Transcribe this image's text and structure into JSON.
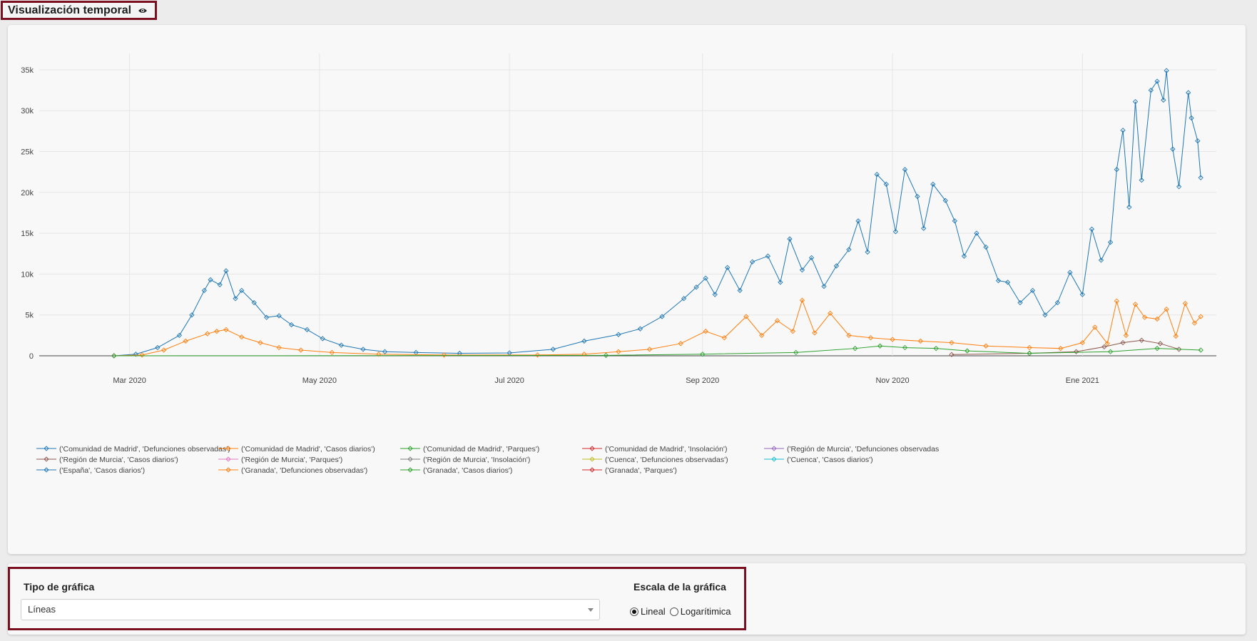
{
  "header": {
    "title": "Visualización temporal",
    "title_icon": "eye-icon"
  },
  "controls": {
    "chart_type_label": "Tipo de gráfica",
    "chart_type_value": "Líneas",
    "scale_label": "Escala de la gráfica",
    "scale_options": [
      {
        "label": "Lineal",
        "checked": true
      },
      {
        "label": "Logarítimica",
        "checked": false
      }
    ]
  },
  "colors": {
    "frame_border": "#7a1020",
    "panel_bg": "#f8f8f8"
  },
  "chart_data": {
    "type": "line",
    "title": "",
    "xlabel": "",
    "ylabel": "",
    "x_tick_labels": [
      "Mar 2020",
      "May 2020",
      "Jul 2020",
      "Sep 2020",
      "Nov 2020",
      "Ene 2021"
    ],
    "x_tick_dates": [
      "2020-03-01",
      "2020-05-01",
      "2020-07-01",
      "2020-09-01",
      "2020-11-01",
      "2021-01-01"
    ],
    "x_range": [
      "2020-02-01",
      "2021-02-13"
    ],
    "y_tick_labels": [
      "0",
      "5k",
      "10k",
      "15k",
      "20k",
      "25k",
      "30k",
      "35k"
    ],
    "y_tick_values": [
      0,
      5000,
      10000,
      15000,
      20000,
      25000,
      30000,
      35000
    ],
    "ylim": [
      0,
      37000
    ],
    "grid": true,
    "legend_position": "bottom",
    "marker": "diamond-open",
    "series": [
      {
        "name": "('Comunidad de Madrid', 'Defunciones observadas')",
        "color": "#1f77b4",
        "points": []
      },
      {
        "name": "('Comunidad de Madrid', 'Casos diarios')",
        "color": "#ff7f0e",
        "points": []
      },
      {
        "name": "('Comunidad de Madrid', 'Parques')",
        "color": "#2ca02c",
        "points": []
      },
      {
        "name": "('Comunidad de Madrid', 'Insolación')",
        "color": "#d62728",
        "points": []
      },
      {
        "name": "('Región de Murcia', 'Defunciones observadas",
        "color": "#9467bd",
        "points": []
      },
      {
        "name": "('Región de Murcia', 'Casos diarios')",
        "color": "#8c564b",
        "points": [
          [
            "2020-11-20",
            150
          ],
          [
            "2020-12-15",
            300
          ],
          [
            "2020-12-30",
            500
          ],
          [
            "2021-01-08",
            1100
          ],
          [
            "2021-01-14",
            1600
          ],
          [
            "2021-01-20",
            1900
          ],
          [
            "2021-01-26",
            1500
          ],
          [
            "2021-02-01",
            800
          ]
        ]
      },
      {
        "name": "('Región de Murcia', 'Parques')",
        "color": "#e377c2",
        "points": []
      },
      {
        "name": "('Región de Murcia', 'Insolación')",
        "color": "#7f7f7f",
        "points": []
      },
      {
        "name": "('Cuenca', 'Defunciones observadas')",
        "color": "#bcbd22",
        "points": []
      },
      {
        "name": "('Cuenca', 'Casos diarios')",
        "color": "#17becf",
        "points": []
      },
      {
        "name": "('España', 'Casos diarios')",
        "color": "#1f77b4",
        "points": [
          [
            "2020-02-25",
            0
          ],
          [
            "2020-03-03",
            200
          ],
          [
            "2020-03-10",
            1000
          ],
          [
            "2020-03-17",
            2500
          ],
          [
            "2020-03-21",
            5000
          ],
          [
            "2020-03-25",
            8000
          ],
          [
            "2020-03-27",
            9300
          ],
          [
            "2020-03-30",
            8700
          ],
          [
            "2020-04-01",
            10400
          ],
          [
            "2020-04-04",
            7000
          ],
          [
            "2020-04-06",
            8000
          ],
          [
            "2020-04-10",
            6500
          ],
          [
            "2020-04-14",
            4700
          ],
          [
            "2020-04-18",
            4900
          ],
          [
            "2020-04-22",
            3800
          ],
          [
            "2020-04-27",
            3200
          ],
          [
            "2020-05-02",
            2100
          ],
          [
            "2020-05-08",
            1300
          ],
          [
            "2020-05-15",
            800
          ],
          [
            "2020-05-22",
            500
          ],
          [
            "2020-06-01",
            400
          ],
          [
            "2020-06-15",
            300
          ],
          [
            "2020-07-01",
            350
          ],
          [
            "2020-07-15",
            800
          ],
          [
            "2020-07-25",
            1800
          ],
          [
            "2020-08-05",
            2600
          ],
          [
            "2020-08-12",
            3300
          ],
          [
            "2020-08-19",
            4800
          ],
          [
            "2020-08-26",
            7000
          ],
          [
            "2020-08-30",
            8400
          ],
          [
            "2020-09-02",
            9500
          ],
          [
            "2020-09-05",
            7500
          ],
          [
            "2020-09-09",
            10800
          ],
          [
            "2020-09-13",
            8000
          ],
          [
            "2020-09-17",
            11500
          ],
          [
            "2020-09-22",
            12200
          ],
          [
            "2020-09-26",
            9000
          ],
          [
            "2020-09-29",
            14300
          ],
          [
            "2020-10-03",
            10500
          ],
          [
            "2020-10-06",
            12000
          ],
          [
            "2020-10-10",
            8500
          ],
          [
            "2020-10-14",
            11000
          ],
          [
            "2020-10-18",
            13000
          ],
          [
            "2020-10-21",
            16500
          ],
          [
            "2020-10-24",
            12700
          ],
          [
            "2020-10-27",
            22200
          ],
          [
            "2020-10-30",
            21000
          ],
          [
            "2020-11-02",
            15200
          ],
          [
            "2020-11-05",
            22800
          ],
          [
            "2020-11-09",
            19500
          ],
          [
            "2020-11-11",
            15600
          ],
          [
            "2020-11-14",
            21000
          ],
          [
            "2020-11-18",
            19000
          ],
          [
            "2020-11-21",
            16500
          ],
          [
            "2020-11-24",
            12200
          ],
          [
            "2020-11-28",
            15000
          ],
          [
            "2020-12-01",
            13300
          ],
          [
            "2020-12-05",
            9200
          ],
          [
            "2020-12-08",
            9000
          ],
          [
            "2020-12-12",
            6500
          ],
          [
            "2020-12-16",
            8000
          ],
          [
            "2020-12-20",
            5000
          ],
          [
            "2020-12-24",
            6500
          ],
          [
            "2020-12-28",
            10200
          ],
          [
            "2021-01-01",
            7500
          ],
          [
            "2021-01-04",
            15500
          ],
          [
            "2021-01-07",
            11700
          ],
          [
            "2021-01-10",
            13900
          ],
          [
            "2021-01-12",
            22800
          ],
          [
            "2021-01-14",
            27600
          ],
          [
            "2021-01-16",
            18200
          ],
          [
            "2021-01-18",
            31100
          ],
          [
            "2021-01-20",
            21500
          ],
          [
            "2021-01-23",
            32500
          ],
          [
            "2021-01-25",
            33600
          ],
          [
            "2021-01-27",
            31300
          ],
          [
            "2021-01-28",
            34900
          ],
          [
            "2021-01-30",
            25300
          ],
          [
            "2021-02-01",
            20700
          ],
          [
            "2021-02-04",
            32200
          ],
          [
            "2021-02-05",
            29100
          ],
          [
            "2021-02-07",
            26300
          ],
          [
            "2021-02-08",
            21800
          ]
        ]
      },
      {
        "name": "('Granada', 'Defunciones observadas')",
        "color": "#ff7f0e",
        "points": [
          [
            "2020-02-25",
            0
          ],
          [
            "2020-03-05",
            100
          ],
          [
            "2020-03-12",
            700
          ],
          [
            "2020-03-19",
            1800
          ],
          [
            "2020-03-26",
            2700
          ],
          [
            "2020-03-29",
            3000
          ],
          [
            "2020-04-01",
            3200
          ],
          [
            "2020-04-06",
            2300
          ],
          [
            "2020-04-12",
            1600
          ],
          [
            "2020-04-18",
            1000
          ],
          [
            "2020-04-25",
            700
          ],
          [
            "2020-05-05",
            400
          ],
          [
            "2020-05-20",
            200
          ],
          [
            "2020-06-10",
            100
          ],
          [
            "2020-07-10",
            100
          ],
          [
            "2020-07-25",
            200
          ],
          [
            "2020-08-05",
            500
          ],
          [
            "2020-08-15",
            800
          ],
          [
            "2020-08-25",
            1500
          ],
          [
            "2020-09-02",
            3000
          ],
          [
            "2020-09-08",
            2200
          ],
          [
            "2020-09-15",
            4800
          ],
          [
            "2020-09-20",
            2500
          ],
          [
            "2020-09-25",
            4300
          ],
          [
            "2020-09-30",
            3000
          ],
          [
            "2020-10-03",
            6800
          ],
          [
            "2020-10-07",
            2800
          ],
          [
            "2020-10-12",
            5200
          ],
          [
            "2020-10-18",
            2500
          ],
          [
            "2020-10-25",
            2200
          ],
          [
            "2020-11-01",
            2000
          ],
          [
            "2020-11-10",
            1800
          ],
          [
            "2020-11-20",
            1600
          ],
          [
            "2020-12-01",
            1200
          ],
          [
            "2020-12-15",
            1000
          ],
          [
            "2020-12-25",
            900
          ],
          [
            "2021-01-01",
            1600
          ],
          [
            "2021-01-05",
            3500
          ],
          [
            "2021-01-09",
            1500
          ],
          [
            "2021-01-12",
            6700
          ],
          [
            "2021-01-15",
            2500
          ],
          [
            "2021-01-18",
            6300
          ],
          [
            "2021-01-21",
            4700
          ],
          [
            "2021-01-25",
            4500
          ],
          [
            "2021-01-28",
            5700
          ],
          [
            "2021-01-31",
            2400
          ],
          [
            "2021-02-03",
            6400
          ],
          [
            "2021-02-06",
            4000
          ],
          [
            "2021-02-08",
            4800
          ]
        ]
      },
      {
        "name": "('Granada', 'Casos diarios')",
        "color": "#2ca02c",
        "points": [
          [
            "2020-02-25",
            0
          ],
          [
            "2020-08-01",
            50
          ],
          [
            "2020-09-01",
            200
          ],
          [
            "2020-10-01",
            400
          ],
          [
            "2020-10-20",
            900
          ],
          [
            "2020-10-28",
            1200
          ],
          [
            "2020-11-05",
            1000
          ],
          [
            "2020-11-15",
            900
          ],
          [
            "2020-11-25",
            600
          ],
          [
            "2020-12-15",
            300
          ],
          [
            "2021-01-10",
            500
          ],
          [
            "2021-01-25",
            900
          ],
          [
            "2021-02-08",
            700
          ]
        ]
      },
      {
        "name": "('Granada', 'Parques')",
        "color": "#d62728",
        "points": []
      }
    ]
  }
}
